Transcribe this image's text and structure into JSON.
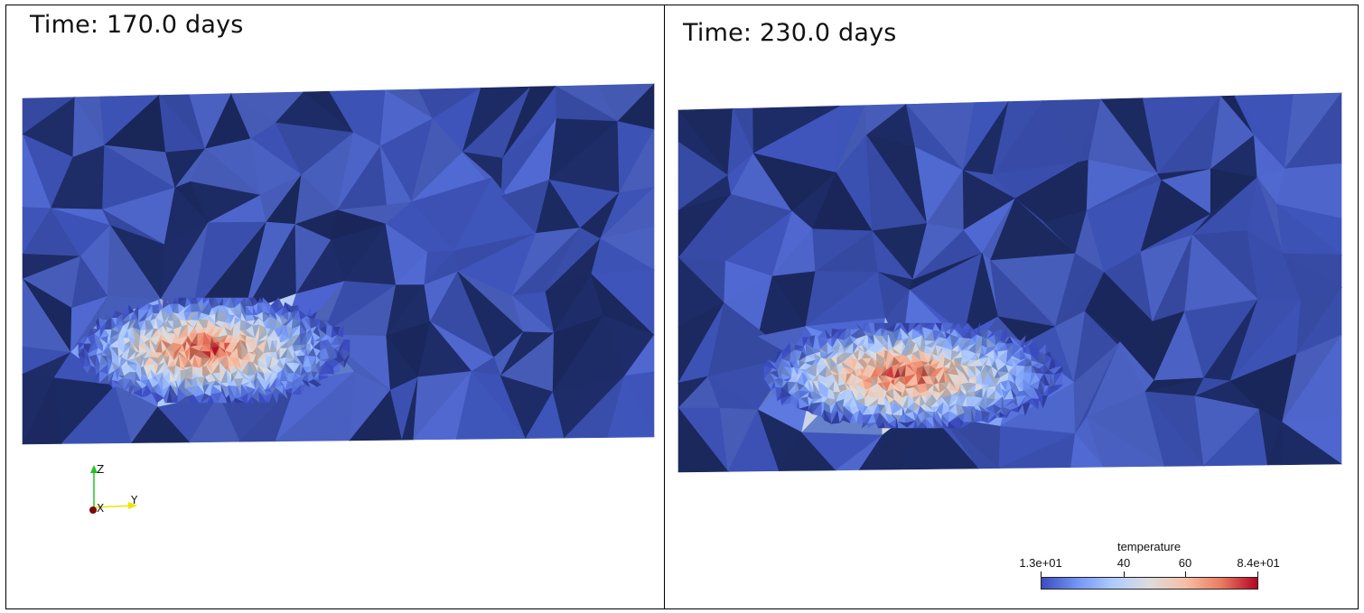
{
  "panels": [
    {
      "id": "left",
      "time_label": "Time: 170.0 days"
    },
    {
      "id": "right",
      "time_label": "Time: 230.0 days"
    }
  ],
  "axes": {
    "z": "Z",
    "y": "Y",
    "x": "X",
    "z_color": "#22c322",
    "y_color": "#e8e800",
    "x_color": "#7a0a0a"
  },
  "colorbar": {
    "title": "temperature",
    "min_label": "1.3e+01",
    "tick_1": "40",
    "tick_2": "60",
    "max_label": "8.4e+01",
    "colors": [
      "#3b4cc0",
      "#7396f5",
      "#b0cbfc",
      "#dddcdc",
      "#f6bfa6",
      "#ea7b60",
      "#b40426"
    ]
  },
  "colors": {
    "mesh_light": "#4b62c4",
    "mesh_mid": "#3a4fae",
    "mesh_dark": "#1c2a62"
  }
}
